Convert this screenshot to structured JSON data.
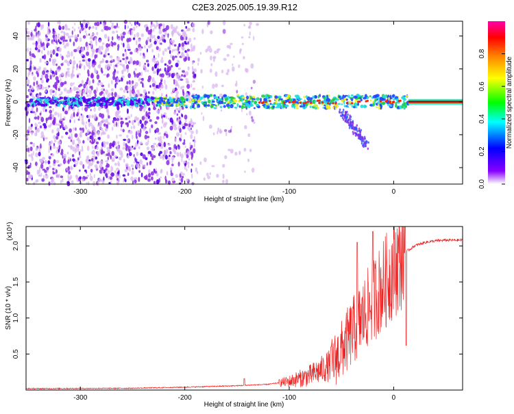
{
  "title": "C2E3.2025.005.19.39.R12",
  "colors": {
    "snr_line": "#ee2222",
    "pale_purple": "#d9b8f0",
    "violet": "#8a2be2",
    "deep_blue_violet": "#5500ee",
    "hot_band": "#ff2200",
    "band_green": "#22cc44",
    "band_cyan": "#22dddd"
  },
  "chart_data": [
    {
      "type": "heatmap",
      "xlabel": "Height of straight line (km)",
      "ylabel": "Frequency (Hz)",
      "xlim": [
        -352,
        66
      ],
      "ylim": [
        -50,
        49
      ],
      "xticks": [
        -300,
        -200,
        -100,
        0
      ],
      "xtick_labels": [
        "-300",
        "-200",
        "-100",
        "0"
      ],
      "yticks": [
        -40,
        -20,
        0,
        20,
        40
      ],
      "ytick_labels": [
        "-40",
        "-20",
        "0",
        "20",
        "40"
      ],
      "colorbar": {
        "label": "Normalized spectral amplitude",
        "range": [
          0,
          1
        ],
        "ticks": [
          0.0,
          0.2,
          0.4,
          0.6,
          0.8
        ],
        "tick_labels": [
          "0.0",
          "0.2",
          "0.4",
          "0.6",
          "0.8"
        ],
        "colormap": [
          "#ffffff",
          "#8800ff",
          "#0000ff",
          "#00ffff",
          "#00ff00",
          "#ffff00",
          "#ff8800",
          "#ff0000",
          "#ff00aa"
        ]
      },
      "features": {
        "noise_region_x": [
          -352,
          -130
        ],
        "noise_dense_x": [
          -352,
          -190
        ],
        "carrier_band_center_hz": 0,
        "carrier_band_half_width_hz": 3,
        "downward_tail": {
          "x": [
            -50,
            -25
          ],
          "y": [
            -5,
            -27
          ]
        },
        "saturated_carrier_x": [
          14,
          66
        ]
      }
    },
    {
      "type": "line",
      "xlabel": "Height of straight line (km)",
      "ylabel": "SNR (10 * v/v)",
      "multiplier_label": "(x10⁴)",
      "xlim": [
        -352,
        66
      ],
      "ylim": [
        0,
        2.27
      ],
      "xticks": [
        -300,
        -200,
        -100,
        0
      ],
      "xtick_labels": [
        "-300",
        "-200",
        "-100",
        "0"
      ],
      "yticks": [
        0.5,
        1.0,
        1.5,
        2.0
      ],
      "ytick_labels": [
        "0.5",
        "1.0",
        "1.5",
        "2.0"
      ],
      "series": [
        {
          "color": "#ee2222",
          "envelope": {
            "x": [
              -352,
              -250,
              -200,
              -150,
              -120,
              -100,
              -80,
              -60,
              -50,
              -40,
              -30,
              -20,
              -10,
              0,
              10,
              20,
              30,
              40,
              50,
              66
            ],
            "y": [
              0.02,
              0.025,
              0.04,
              0.06,
              0.08,
              0.12,
              0.2,
              0.35,
              0.55,
              0.8,
              1.0,
              1.25,
              1.45,
              1.7,
              1.9,
              2.0,
              2.05,
              2.07,
              2.08,
              2.08
            ]
          },
          "spikes": [
            {
              "x": -143,
              "y": 0.16
            },
            {
              "x": -60,
              "y": 0.6
            },
            {
              "x": -35,
              "y": 2.05
            },
            {
              "x": -20,
              "y": 2.2
            },
            {
              "x": 11,
              "y": 2.27
            },
            {
              "x": 12,
              "y": 0.62
            }
          ]
        }
      ]
    }
  ]
}
